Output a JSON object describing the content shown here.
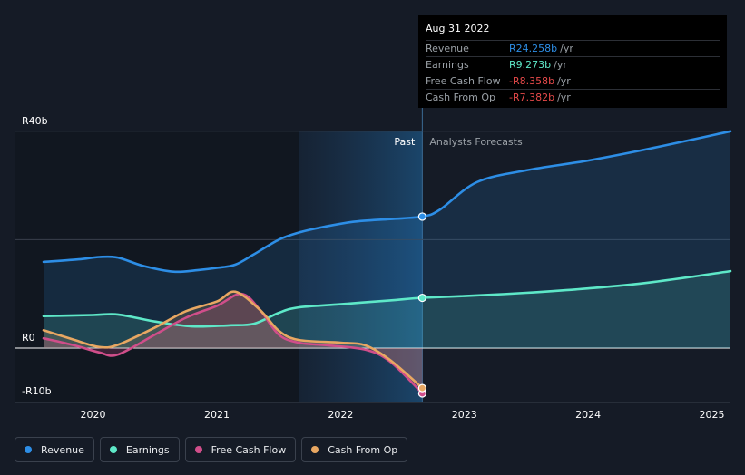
{
  "chart_data": {
    "type": "line",
    "title": "",
    "xlabel": "",
    "ylabel": "",
    "currency_prefix": "R",
    "ylim": [
      -10,
      40
    ],
    "y_ticks": [
      {
        "value": 40,
        "label": "R40b"
      },
      {
        "value": 0,
        "label": "R0"
      },
      {
        "value": -10,
        "label": "-R10b"
      }
    ],
    "y_gridlines": [
      40,
      20,
      0
    ],
    "x_range": [
      2019.6,
      2025.15
    ],
    "x_ticks": [
      {
        "value": 2020,
        "label": "2020"
      },
      {
        "value": 2021,
        "label": "2021"
      },
      {
        "value": 2022,
        "label": "2022"
      },
      {
        "value": 2023,
        "label": "2023"
      },
      {
        "value": 2024,
        "label": "2024"
      },
      {
        "value": 2025,
        "label": "2025"
      }
    ],
    "past_region_start": 2021.66,
    "split_x": 2022.66,
    "period_labels": {
      "past": "Past",
      "forecast": "Analysts Forecasts"
    },
    "series": [
      {
        "key": "revenue",
        "name": "Revenue",
        "color": "#2d8ee6",
        "area": true,
        "x": [
          2019.6,
          2019.9,
          2020.05,
          2020.2,
          2020.4,
          2020.65,
          2020.85,
          2021.0,
          2021.15,
          2021.3,
          2021.5,
          2021.66,
          2021.85,
          2022.1,
          2022.4,
          2022.66,
          2022.8,
          2023.1,
          2023.5,
          2024.0,
          2024.5,
          2025.15
        ],
        "y": [
          15.9,
          16.4,
          16.8,
          16.7,
          15.2,
          14.1,
          14.4,
          14.8,
          15.4,
          17.3,
          20.0,
          21.3,
          22.3,
          23.3,
          23.8,
          24.258,
          25.5,
          30.6,
          32.8,
          34.6,
          36.8,
          40.0
        ],
        "marker_x": 2022.66,
        "marker_y": 24.258
      },
      {
        "key": "earnings",
        "name": "Earnings",
        "color": "#5ee8c8",
        "area": true,
        "x": [
          2019.6,
          2020.0,
          2020.2,
          2020.5,
          2020.8,
          2021.1,
          2021.3,
          2021.5,
          2021.66,
          2022.0,
          2022.4,
          2022.66,
          2023.0,
          2023.5,
          2024.0,
          2024.5,
          2025.15
        ],
        "y": [
          5.9,
          6.1,
          6.2,
          4.9,
          4.0,
          4.2,
          4.5,
          6.5,
          7.5,
          8.1,
          8.8,
          9.273,
          9.6,
          10.2,
          11.0,
          12.1,
          14.2
        ],
        "marker_x": 2022.66,
        "marker_y": 9.273
      },
      {
        "key": "fcf",
        "name": "Free Cash Flow",
        "color": "#d04e8a",
        "area": true,
        "x": [
          2019.6,
          2019.85,
          2020.05,
          2020.2,
          2020.5,
          2020.75,
          2021.0,
          2021.2,
          2021.35,
          2021.5,
          2021.66,
          2021.9,
          2022.2,
          2022.4,
          2022.66
        ],
        "y": [
          1.8,
          0.5,
          -0.8,
          -1.2,
          2.5,
          5.6,
          7.8,
          10.0,
          7.0,
          2.5,
          1.0,
          0.5,
          -0.3,
          -2.5,
          -8.358
        ],
        "marker_x": 2022.66,
        "marker_y": -8.358
      },
      {
        "key": "cfo",
        "name": "Cash From Op",
        "color": "#e8a762",
        "area": true,
        "x": [
          2019.6,
          2019.85,
          2020.05,
          2020.2,
          2020.5,
          2020.75,
          2021.0,
          2021.15,
          2021.35,
          2021.5,
          2021.66,
          2022.0,
          2022.2,
          2022.4,
          2022.66
        ],
        "y": [
          3.3,
          1.5,
          0.2,
          0.6,
          3.8,
          6.8,
          8.6,
          10.4,
          7.0,
          3.2,
          1.5,
          1.0,
          0.5,
          -2.2,
          -7.382
        ],
        "marker_x": 2022.66,
        "marker_y": -7.382
      }
    ]
  },
  "tooltip": {
    "date": "Aug 31 2022",
    "rows": [
      {
        "label": "Revenue",
        "value": "R24.258b",
        "unit": "/yr",
        "color": "#2d8ee6"
      },
      {
        "label": "Earnings",
        "value": "R9.273b",
        "unit": "/yr",
        "color": "#5ee8c8"
      },
      {
        "label": "Free Cash Flow",
        "value": "-R8.358b",
        "unit": "/yr",
        "color": "#e84a4a"
      },
      {
        "label": "Cash From Op",
        "value": "-R7.382b",
        "unit": "/yr",
        "color": "#e84a4a"
      }
    ]
  },
  "legend": [
    {
      "label": "Revenue",
      "color": "#2d8ee6"
    },
    {
      "label": "Earnings",
      "color": "#5ee8c8"
    },
    {
      "label": "Free Cash Flow",
      "color": "#d04e8a"
    },
    {
      "label": "Cash From Op",
      "color": "#e8a762"
    }
  ]
}
